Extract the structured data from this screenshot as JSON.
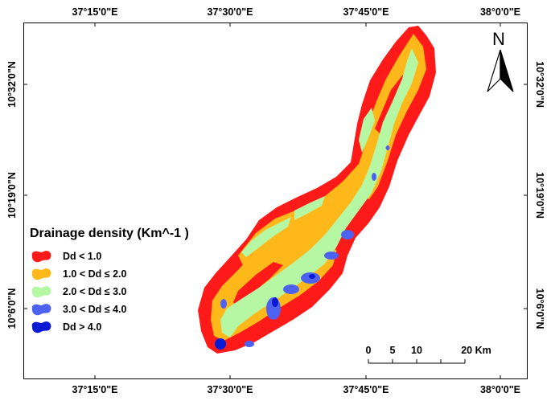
{
  "map": {
    "x_ticks": [
      "37°15'0\"E",
      "37°30'0\"E",
      "37°45'0\"E",
      "38°0'0\"E"
    ],
    "y_ticks": [
      "10°32'0\"N",
      "10°19'0\"N",
      "10°6'0\"N"
    ],
    "north_label": "N"
  },
  "legend": {
    "title": "Drainage density (Km^-1 )",
    "items": [
      {
        "label": "Dd < 1.0",
        "color": "#ff1a1a"
      },
      {
        "label": "1.0 < Dd ≤ 2.0",
        "color": "#ffb81a"
      },
      {
        "label": "2.0 < Dd ≤ 3.0",
        "color": "#b6f7a4"
      },
      {
        "label": "3.0 < Dd ≤ 4.0",
        "color": "#4d62f0"
      },
      {
        "label": "Dd > 4.0",
        "color": "#0a1ad4"
      }
    ]
  },
  "scale_bar": {
    "labels": [
      "0",
      "5",
      "10",
      "20 Km"
    ]
  }
}
